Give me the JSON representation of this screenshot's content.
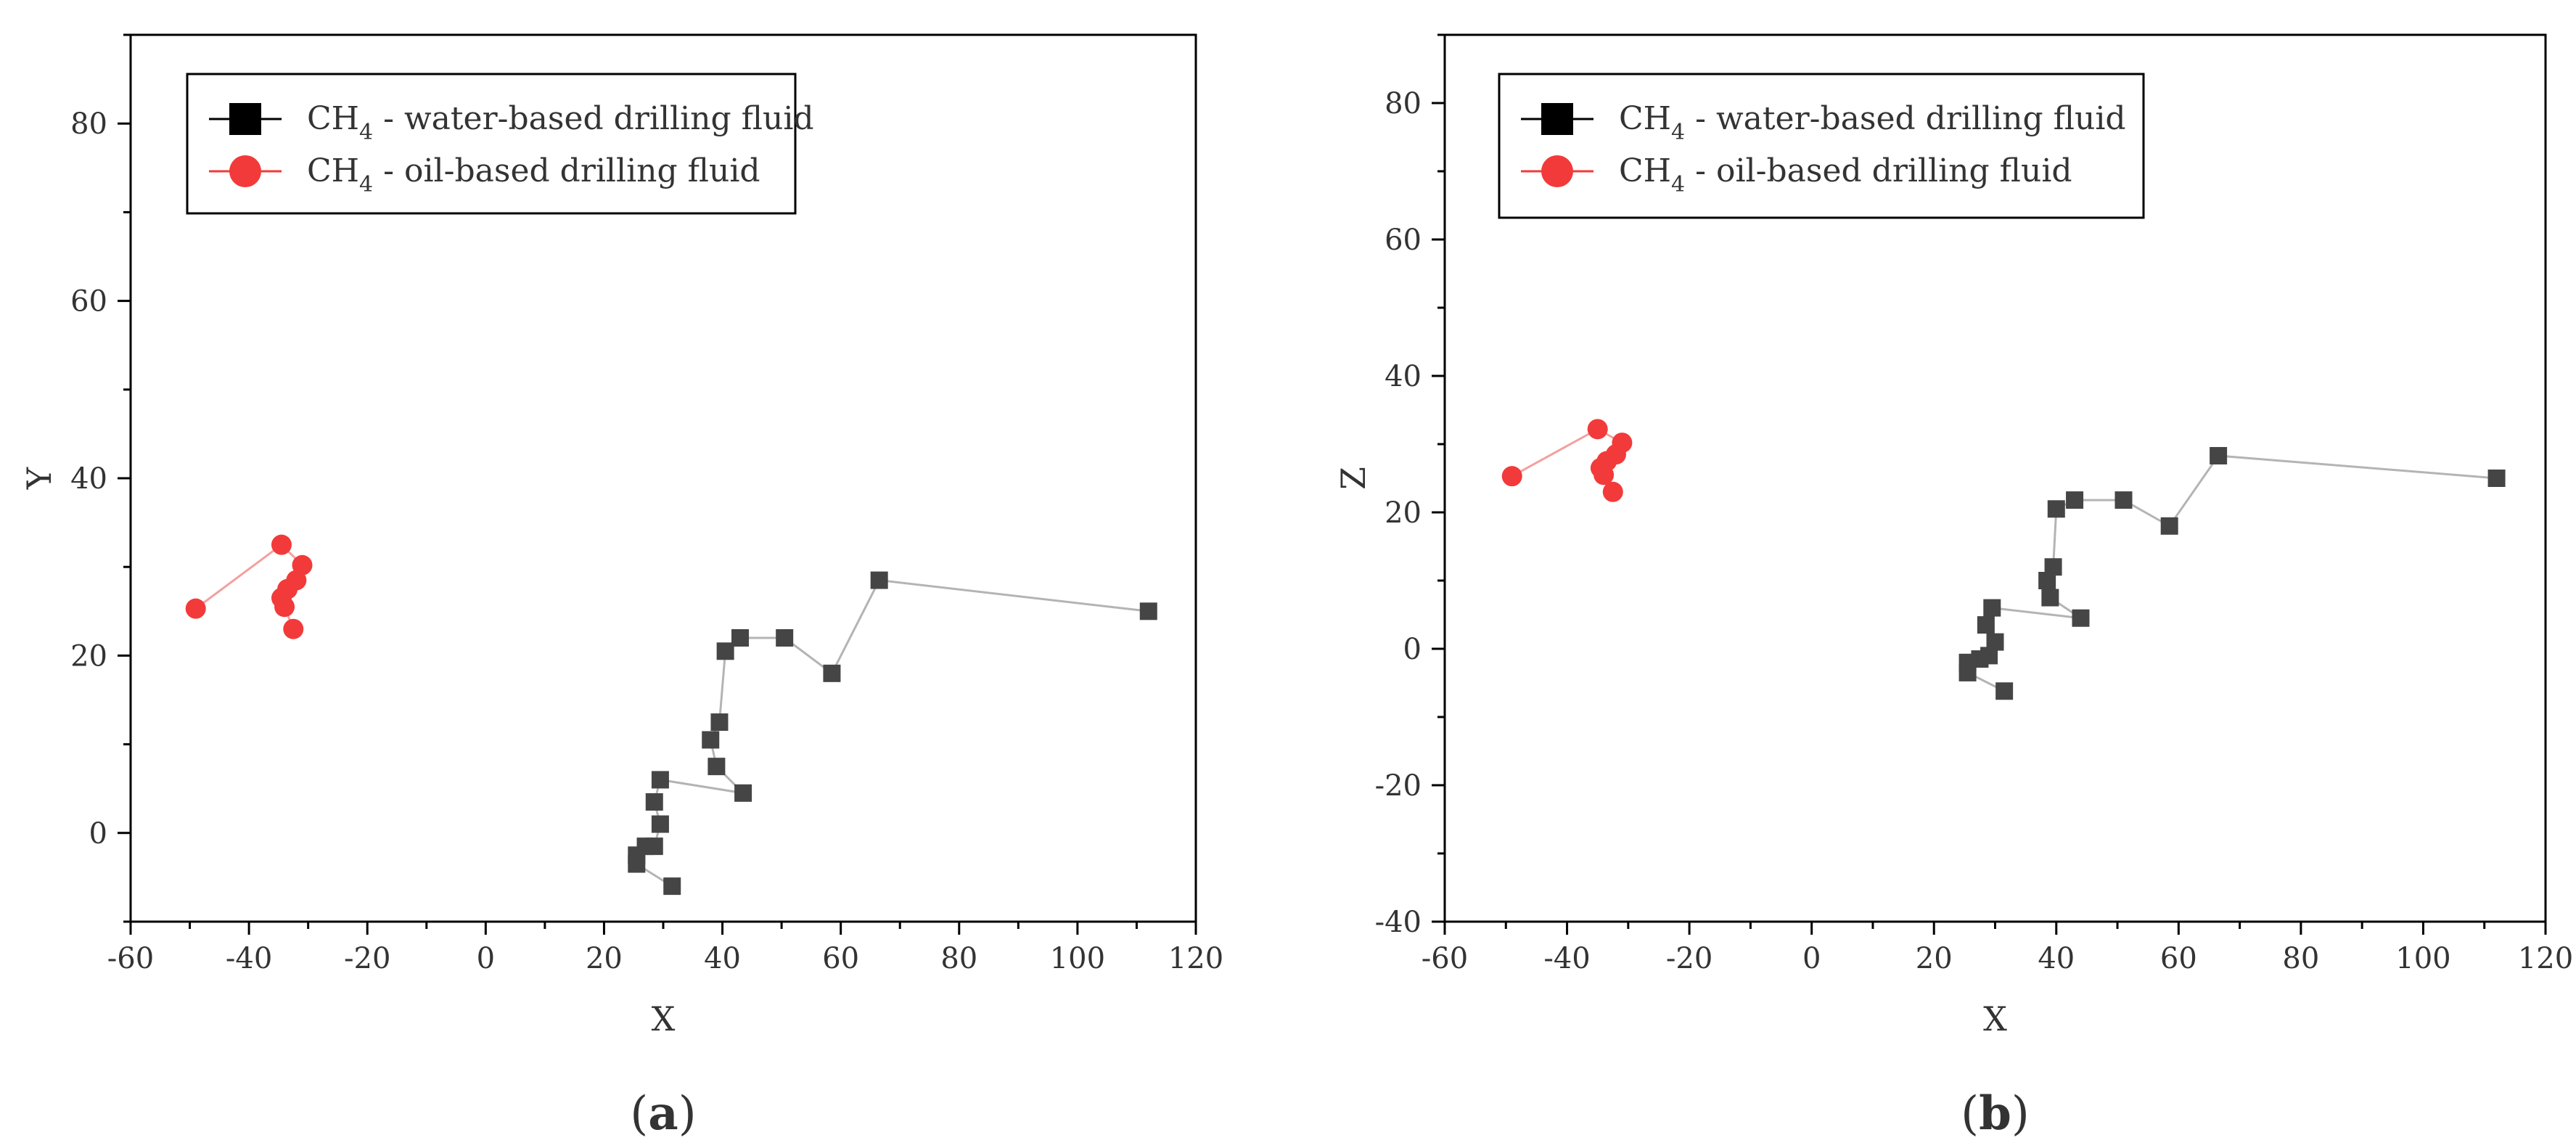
{
  "chart_data": [
    {
      "type": "scatter",
      "panel_label": "a",
      "xlabel": "X",
      "ylabel": "Y",
      "xlim": [
        -60,
        120
      ],
      "ylim": [
        -10,
        90
      ],
      "xticks": [
        -60,
        -40,
        -20,
        0,
        20,
        40,
        60,
        80,
        100,
        120
      ],
      "yticks": [
        0,
        20,
        40,
        60,
        80
      ],
      "grid": false,
      "legend_position": "top-left",
      "series": [
        {
          "name": "CH4 - water-based drilling fluid",
          "marker": "square",
          "color": "#454545",
          "line_color": "#b4b4b4",
          "points": [
            [
              112,
              25
            ],
            [
              66.5,
              28.5
            ],
            [
              58.5,
              18
            ],
            [
              50.5,
              22
            ],
            [
              43,
              22
            ],
            [
              40.5,
              20.5
            ],
            [
              39.5,
              12.5
            ],
            [
              38,
              10.5
            ],
            [
              39,
              7.5
            ],
            [
              43.5,
              4.5
            ],
            [
              29.5,
              6
            ],
            [
              28.5,
              3.5
            ],
            [
              29.5,
              1
            ],
            [
              28.5,
              -1.5
            ],
            [
              27,
              -1.5
            ],
            [
              25.5,
              -2.5
            ],
            [
              25.5,
              -3.5
            ],
            [
              31.5,
              -6
            ]
          ]
        },
        {
          "name": "CH4 - oil-based drilling fluid",
          "marker": "circle",
          "color": "#f23a3a",
          "line_color": "#f4a0a0",
          "points": [
            [
              -49,
              25.3
            ],
            [
              -34.5,
              32.5
            ],
            [
              -31,
              30.2
            ],
            [
              -32,
              28.5
            ],
            [
              -33.5,
              27.5
            ],
            [
              -34.5,
              26.5
            ],
            [
              -34,
              25.5
            ],
            [
              -32.5,
              23
            ]
          ]
        }
      ]
    },
    {
      "type": "scatter",
      "panel_label": "b",
      "xlabel": "X",
      "ylabel": "Z",
      "xlim": [
        -60,
        120
      ],
      "ylim": [
        -40,
        90
      ],
      "xticks": [
        -60,
        -40,
        -20,
        0,
        20,
        40,
        60,
        80,
        100,
        120
      ],
      "yticks": [
        -40,
        -20,
        0,
        20,
        40,
        60,
        80
      ],
      "grid": false,
      "legend_position": "top-left",
      "series": [
        {
          "name": "CH4 - water-based drilling fluid",
          "marker": "square",
          "color": "#454545",
          "line_color": "#b4b4b4",
          "points": [
            [
              112,
              25
            ],
            [
              66.5,
              28.3
            ],
            [
              58.5,
              18
            ],
            [
              51,
              21.8
            ],
            [
              43,
              21.8
            ],
            [
              40,
              20.5
            ],
            [
              39.5,
              12
            ],
            [
              38.5,
              10
            ],
            [
              39,
              7.5
            ],
            [
              44,
              4.5
            ],
            [
              29.5,
              6
            ],
            [
              28.5,
              3.5
            ],
            [
              30,
              1
            ],
            [
              29,
              -1
            ],
            [
              27.5,
              -1.5
            ],
            [
              25.5,
              -2
            ],
            [
              25.5,
              -3.5
            ],
            [
              31.5,
              -6.2
            ]
          ]
        },
        {
          "name": "CH4 - oil-based drilling fluid",
          "marker": "circle",
          "color": "#f23a3a",
          "line_color": "#f4a0a0",
          "points": [
            [
              -49,
              25.3
            ],
            [
              -35,
              32.2
            ],
            [
              -31,
              30.2
            ],
            [
              -32,
              28.5
            ],
            [
              -33.5,
              27.5
            ],
            [
              -34.5,
              26.5
            ],
            [
              -34,
              25.5
            ],
            [
              -32.5,
              23
            ]
          ]
        }
      ]
    }
  ]
}
